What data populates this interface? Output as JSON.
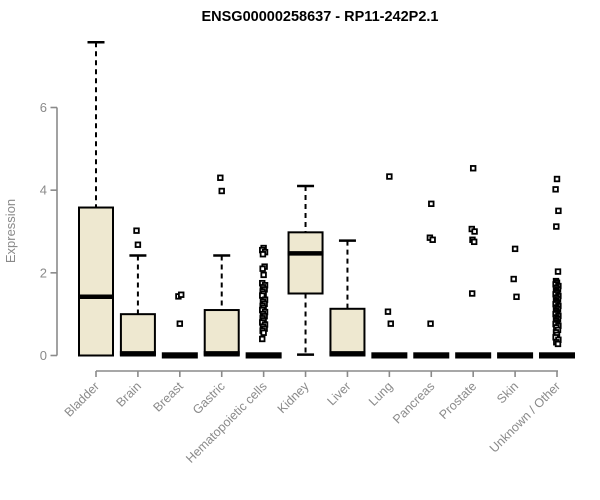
{
  "chart_data": {
    "type": "boxplot",
    "title": "ENSG00000258637 - RP11-242P2.1",
    "ylabel": "Expression",
    "xlabel": "",
    "ylim": [
      0,
      7.6
    ],
    "yticks": [
      0,
      2,
      4,
      6
    ],
    "grid": false,
    "legend": "none",
    "categories": [
      "Bladder",
      "Brain",
      "Breast",
      "Gastric",
      "Hematopoietic cells",
      "Kidney",
      "Liver",
      "Lung",
      "Pancreas",
      "Prostate",
      "Skin",
      "Unknown / Other"
    ],
    "boxes": [
      {
        "category": "Bladder",
        "whisker_low": null,
        "q1": 0,
        "median": 1.42,
        "q3": 3.58,
        "whisker_high": 7.58,
        "outliers": []
      },
      {
        "category": "Brain",
        "whisker_low": null,
        "q1": 0,
        "median": 0.05,
        "q3": 1.0,
        "whisker_high": 2.42,
        "outliers": [
          2.68,
          3.02
        ]
      },
      {
        "category": "Breast",
        "whisker_low": null,
        "q1": 0,
        "median": 0,
        "q3": 0,
        "whisker_high": null,
        "outliers": [
          0.77,
          1.43,
          1.47
        ]
      },
      {
        "category": "Gastric",
        "whisker_low": null,
        "q1": 0,
        "median": 0.05,
        "q3": 1.1,
        "whisker_high": 2.42,
        "outliers": [
          3.98,
          4.3
        ]
      },
      {
        "category": "Hematopoietic cells",
        "whisker_low": null,
        "q1": 0,
        "median": 0,
        "q3": 0,
        "whisker_high": null,
        "outliers": [
          2.6,
          2.55,
          2.5,
          2.45,
          2.15,
          2.1,
          1.95,
          1.75,
          1.7,
          1.65,
          1.6,
          1.55,
          1.5,
          1.45,
          1.35,
          1.3,
          1.25,
          1.2,
          1.15,
          1.1,
          1.05,
          1.0,
          0.95,
          0.9,
          0.85,
          0.8,
          0.75,
          0.7,
          0.65,
          0.6,
          0.55,
          0.4
        ]
      },
      {
        "category": "Kidney",
        "whisker_low": 0.02,
        "q1": 1.5,
        "median": 2.47,
        "q3": 2.98,
        "whisker_high": 4.1,
        "outliers": []
      },
      {
        "category": "Liver",
        "whisker_low": null,
        "q1": 0,
        "median": 0.05,
        "q3": 1.13,
        "whisker_high": 2.78,
        "outliers": []
      },
      {
        "category": "Lung",
        "whisker_low": null,
        "q1": 0,
        "median": 0,
        "q3": 0,
        "whisker_high": null,
        "outliers": [
          4.33,
          1.06,
          0.77
        ]
      },
      {
        "category": "Pancreas",
        "whisker_low": null,
        "q1": 0,
        "median": 0,
        "q3": 0,
        "whisker_high": null,
        "outliers": [
          3.67,
          2.85,
          2.8,
          0.77
        ]
      },
      {
        "category": "Prostate",
        "whisker_low": null,
        "q1": 0,
        "median": 0,
        "q3": 0,
        "whisker_high": null,
        "outliers": [
          4.53,
          3.06,
          3.0,
          2.8,
          2.75,
          1.5
        ]
      },
      {
        "category": "Skin",
        "whisker_low": null,
        "q1": 0,
        "median": 0,
        "q3": 0,
        "whisker_high": null,
        "outliers": [
          2.58,
          1.85,
          1.42
        ]
      },
      {
        "category": "Unknown / Other",
        "whisker_low": null,
        "q1": 0,
        "median": 0,
        "q3": 0,
        "whisker_high": null,
        "outliers": [
          4.27,
          4.02,
          3.5,
          3.12,
          2.03,
          1.8,
          1.76,
          1.72,
          1.68,
          1.64,
          1.6,
          1.56,
          1.52,
          1.48,
          1.44,
          1.4,
          1.36,
          1.32,
          1.28,
          1.24,
          1.2,
          1.16,
          1.12,
          1.08,
          1.04,
          1.0,
          0.96,
          0.92,
          0.88,
          0.84,
          0.8,
          0.76,
          0.72,
          0.68,
          0.62,
          0.56,
          0.5,
          0.44,
          0.38,
          0.32,
          0.28
        ]
      }
    ],
    "colors": {
      "box_fill": "#EEE8D0",
      "box_stroke": "#000000",
      "median": "#000000",
      "whisker": "#000000",
      "outlier_stroke": "#000000",
      "outlier_fill": "#ffffff",
      "axis": "#8a8a8a",
      "tick_label": "#8a8a8a",
      "title": "#000000",
      "background": "#ffffff"
    }
  }
}
